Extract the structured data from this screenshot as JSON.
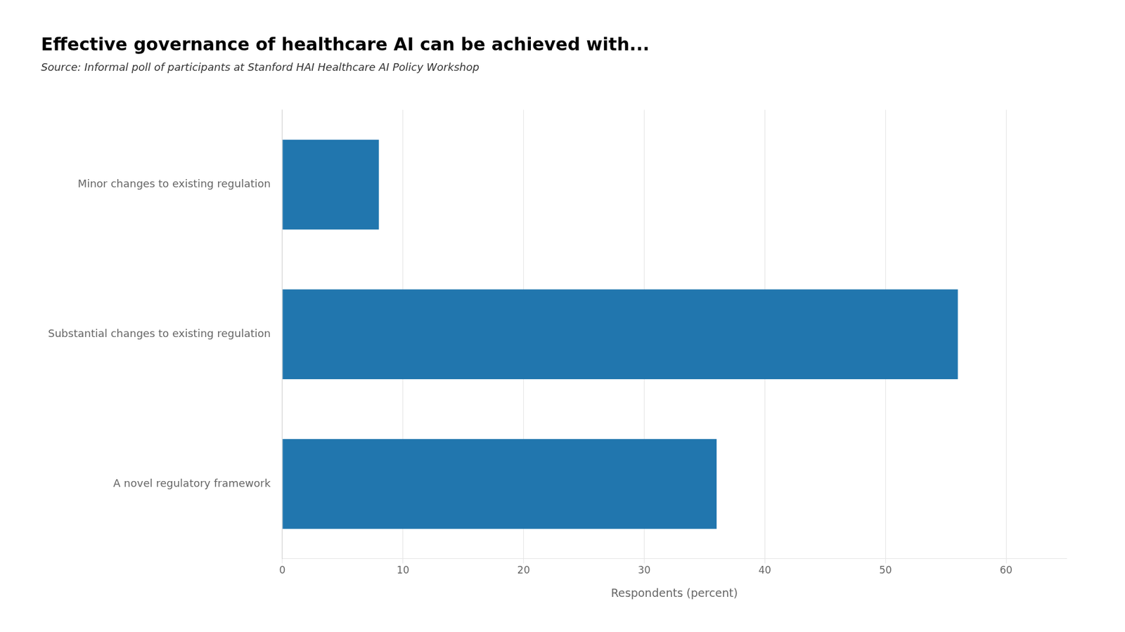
{
  "chart_data": {
    "type": "bar",
    "orientation": "horizontal",
    "title": "Effective governance of healthcare AI can be achieved with...",
    "subtitle": "Source: Informal poll of participants at Stanford HAI Healthcare AI Policy Workshop",
    "categories": [
      "A novel regulatory framework",
      "Substantial changes to existing regulation",
      "Minor changes to existing regulation"
    ],
    "values": [
      36,
      56,
      8
    ],
    "color": "#2176ae",
    "xlim": [
      0,
      65
    ],
    "xticks": [
      0,
      10,
      20,
      30,
      40,
      50,
      60
    ],
    "xlabel": "Respondents (percent)",
    "grid": true
  }
}
